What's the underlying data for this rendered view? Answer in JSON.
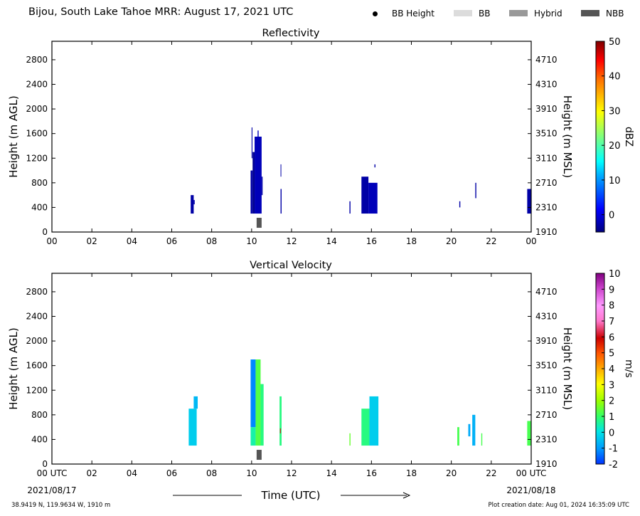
{
  "header": {
    "title": "Bijou, South Lake Tahoe MRR:  August 17, 2021 UTC",
    "legend": [
      {
        "label": "BB Height",
        "marker": "dot",
        "color": "#000000"
      },
      {
        "label": "BB",
        "marker": "rect",
        "color": "#dcdcdc"
      },
      {
        "label": "Hybrid",
        "marker": "rect",
        "color": "#999999"
      },
      {
        "label": "NBB",
        "marker": "rect",
        "color": "#555555"
      }
    ]
  },
  "xaxis": {
    "label": "Time (UTC)",
    "ticks": [
      "00",
      "02",
      "04",
      "06",
      "08",
      "10",
      "12",
      "14",
      "16",
      "18",
      "20",
      "22",
      "00"
    ],
    "ticks_bottom": [
      "00 UTC",
      "02",
      "04",
      "06",
      "08",
      "10",
      "12",
      "14",
      "16",
      "18",
      "20",
      "22",
      "00 UTC"
    ],
    "start_date": "2021/08/17",
    "end_date": "2021/08/18",
    "range": [
      0,
      24
    ]
  },
  "footer": {
    "location": "38.9419 N, 119.9634 W, 1910 m",
    "created": "Plot creation date: Aug 01, 2024 16:35:09 UTC"
  },
  "chart_data": [
    {
      "type": "heatmap",
      "title": "Reflectivity",
      "ylabel": "Height (m AGL)",
      "ylabel_right": "Height (m MSL)",
      "yticks": [
        0,
        400,
        800,
        1200,
        1600,
        2000,
        2400,
        2800
      ],
      "yticks_right": [
        1910,
        2310,
        2710,
        3110,
        3510,
        3910,
        4310,
        4710
      ],
      "ylim": [
        0,
        3100
      ],
      "xlim": [
        0,
        24
      ],
      "colorbar": {
        "label": "dBZ",
        "ticks": [
          0,
          10,
          20,
          30,
          40,
          50
        ],
        "range": [
          -5,
          50
        ]
      },
      "cells": [
        {
          "t0": 6.95,
          "t1": 7.1,
          "h0": 300,
          "h1": 600,
          "v": -3
        },
        {
          "t0": 7.1,
          "t1": 7.15,
          "h0": 450,
          "h1": 520,
          "v": -3
        },
        {
          "t0": 9.95,
          "t1": 10.05,
          "h0": 300,
          "h1": 1000,
          "v": -3
        },
        {
          "t0": 10.0,
          "t1": 10.04,
          "h0": 1200,
          "h1": 1700,
          "v": -3
        },
        {
          "t0": 10.05,
          "t1": 10.15,
          "h0": 300,
          "h1": 1300,
          "v": -4
        },
        {
          "t0": 10.15,
          "t1": 10.5,
          "h0": 300,
          "h1": 1550,
          "v": -2
        },
        {
          "t0": 10.3,
          "t1": 10.35,
          "h0": 1550,
          "h1": 1650,
          "v": -2
        },
        {
          "t0": 10.5,
          "t1": 10.55,
          "h0": 600,
          "h1": 900,
          "v": -3
        },
        {
          "t0": 11.45,
          "t1": 11.5,
          "h0": 300,
          "h1": 700,
          "v": -3
        },
        {
          "t0": 11.45,
          "t1": 11.48,
          "h0": 900,
          "h1": 1100,
          "v": -3
        },
        {
          "t0": 14.9,
          "t1": 14.95,
          "h0": 300,
          "h1": 500,
          "v": -3
        },
        {
          "t0": 15.5,
          "t1": 15.85,
          "h0": 300,
          "h1": 900,
          "v": -3
        },
        {
          "t0": 15.85,
          "t1": 16.3,
          "h0": 300,
          "h1": 800,
          "v": -2
        },
        {
          "t0": 16.15,
          "t1": 16.2,
          "h0": 1050,
          "h1": 1100,
          "v": -3
        },
        {
          "t0": 20.4,
          "t1": 20.45,
          "h0": 400,
          "h1": 500,
          "v": -3
        },
        {
          "t0": 21.2,
          "t1": 21.25,
          "h0": 550,
          "h1": 800,
          "v": -3
        },
        {
          "t0": 23.8,
          "t1": 24.0,
          "h0": 300,
          "h1": 700,
          "v": -3
        }
      ],
      "bright_band": [
        {
          "t0": 10.25,
          "t1": 10.5,
          "h": 150,
          "kind": "NBB"
        }
      ]
    },
    {
      "type": "heatmap",
      "title": "Vertical Velocity",
      "ylabel": "Height (m AGL)",
      "ylabel_right": "Height (m MSL)",
      "yticks": [
        0,
        400,
        800,
        1200,
        1600,
        2000,
        2400,
        2800
      ],
      "yticks_right": [
        1910,
        2310,
        2710,
        3110,
        3510,
        3910,
        4310,
        4710
      ],
      "ylim": [
        0,
        3100
      ],
      "xlim": [
        0,
        24
      ],
      "colorbar": {
        "label": "m/s",
        "ticks": [
          -2,
          -1,
          0,
          1,
          2,
          3,
          4,
          5,
          6,
          7,
          8,
          9,
          10
        ],
        "range": [
          -2,
          10
        ]
      },
      "cells": [
        {
          "t0": 6.85,
          "t1": 7.25,
          "h0": 300,
          "h1": 900,
          "v": -0.3
        },
        {
          "t0": 7.1,
          "t1": 7.3,
          "h0": 900,
          "h1": 1100,
          "v": -0.6
        },
        {
          "t0": 9.95,
          "t1": 10.2,
          "h0": 600,
          "h1": 1700,
          "v": -1.2
        },
        {
          "t0": 9.95,
          "t1": 10.2,
          "h0": 300,
          "h1": 600,
          "v": 0.5
        },
        {
          "t0": 10.2,
          "t1": 10.45,
          "h0": 300,
          "h1": 1700,
          "v": 1.3
        },
        {
          "t0": 10.45,
          "t1": 10.6,
          "h0": 300,
          "h1": 1300,
          "v": 0.8
        },
        {
          "t0": 11.4,
          "t1": 11.5,
          "h0": 300,
          "h1": 1100,
          "v": 0.8
        },
        {
          "t0": 11.42,
          "t1": 11.46,
          "h0": 500,
          "h1": 580,
          "v": 6
        },
        {
          "t0": 14.9,
          "t1": 14.95,
          "h0": 300,
          "h1": 500,
          "v": 1.5
        },
        {
          "t0": 15.5,
          "t1": 15.9,
          "h0": 300,
          "h1": 900,
          "v": 0.8
        },
        {
          "t0": 15.9,
          "t1": 16.35,
          "h0": 300,
          "h1": 1100,
          "v": -0.3
        },
        {
          "t0": 20.3,
          "t1": 20.4,
          "h0": 300,
          "h1": 600,
          "v": 1.2
        },
        {
          "t0": 20.85,
          "t1": 20.95,
          "h0": 450,
          "h1": 650,
          "v": -0.8
        },
        {
          "t0": 21.05,
          "t1": 21.2,
          "h0": 300,
          "h1": 800,
          "v": -0.7
        },
        {
          "t0": 21.5,
          "t1": 21.55,
          "h0": 300,
          "h1": 500,
          "v": 1.2
        },
        {
          "t0": 23.8,
          "t1": 24.0,
          "h0": 300,
          "h1": 700,
          "v": 1.2
        }
      ],
      "bright_band": [
        {
          "t0": 10.25,
          "t1": 10.5,
          "h": 150,
          "kind": "NBB"
        }
      ]
    }
  ]
}
